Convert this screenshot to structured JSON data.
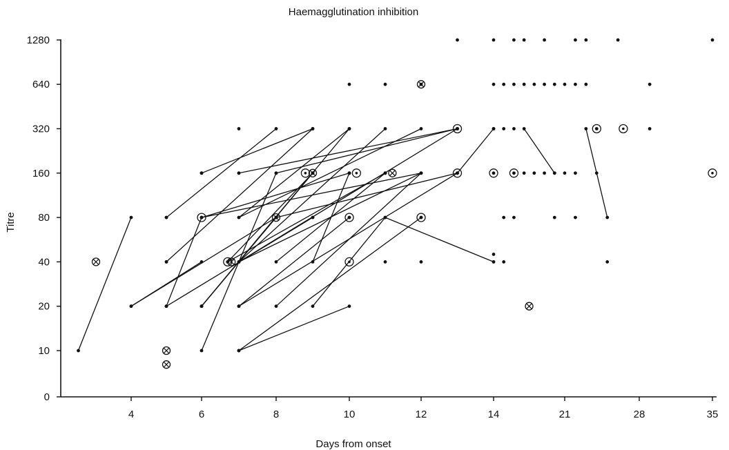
{
  "chart_data": {
    "type": "scatter",
    "title": "Haemagglutination inhibition",
    "xlabel": "Days from onset",
    "ylabel": "Titre",
    "x_ticks": [
      4,
      6,
      8,
      10,
      12,
      14,
      21,
      28,
      35
    ],
    "y_ticks": [
      0,
      10,
      20,
      40,
      80,
      160,
      320,
      640,
      1280
    ],
    "y_scale": "log2",
    "grid": false,
    "legend": "none",
    "paired_sera": [
      [
        [
          2.5,
          10
        ],
        [
          4,
          80
        ]
      ],
      [
        [
          4,
          20
        ],
        [
          6,
          40
        ]
      ],
      [
        [
          4,
          20
        ],
        [
          8,
          80
        ]
      ],
      [
        [
          5,
          80
        ],
        [
          8,
          320
        ]
      ],
      [
        [
          5,
          40
        ],
        [
          9,
          320
        ]
      ],
      [
        [
          5,
          20
        ],
        [
          6,
          80
        ]
      ],
      [
        [
          5,
          20
        ],
        [
          9,
          80
        ]
      ],
      [
        [
          6,
          20
        ],
        [
          10,
          320
        ]
      ],
      [
        [
          6,
          160
        ],
        [
          9,
          320
        ]
      ],
      [
        [
          6,
          80
        ],
        [
          10,
          160
        ]
      ],
      [
        [
          6,
          10
        ],
        [
          8,
          160
        ]
      ],
      [
        [
          6,
          80
        ],
        [
          12,
          160
        ]
      ],
      [
        [
          6,
          20
        ],
        [
          9,
          160
        ]
      ],
      [
        [
          6,
          20
        ],
        [
          8,
          80
        ]
      ],
      [
        [
          6.7,
          40
        ],
        [
          9,
          160
        ]
      ],
      [
        [
          6.7,
          40
        ],
        [
          11,
          160
        ]
      ],
      [
        [
          7,
          160
        ],
        [
          13,
          320
        ]
      ],
      [
        [
          7,
          80
        ],
        [
          10,
          320
        ]
      ],
      [
        [
          7,
          80
        ],
        [
          12,
          320
        ]
      ],
      [
        [
          7,
          40
        ],
        [
          11,
          320
        ]
      ],
      [
        [
          7,
          40
        ],
        [
          12,
          160
        ]
      ],
      [
        [
          7,
          20
        ],
        [
          10,
          80
        ]
      ],
      [
        [
          7,
          20
        ],
        [
          13,
          160
        ]
      ],
      [
        [
          7,
          10
        ],
        [
          12,
          80
        ]
      ],
      [
        [
          7,
          10
        ],
        [
          10,
          20
        ]
      ],
      [
        [
          7,
          40
        ],
        [
          13,
          320
        ]
      ],
      [
        [
          8,
          40
        ],
        [
          11,
          160
        ]
      ],
      [
        [
          8,
          20
        ],
        [
          12,
          160
        ]
      ],
      [
        [
          8,
          80
        ],
        [
          13,
          160
        ]
      ],
      [
        [
          8,
          160
        ],
        [
          13,
          320
        ]
      ],
      [
        [
          9,
          20
        ],
        [
          11,
          80
        ]
      ],
      [
        [
          9,
          40
        ],
        [
          10,
          160
        ]
      ],
      [
        [
          11,
          80
        ],
        [
          14,
          40
        ]
      ],
      [
        [
          14,
          320
        ],
        [
          13,
          160
        ]
      ],
      [
        [
          17,
          320
        ],
        [
          20,
          160
        ]
      ],
      [
        [
          23,
          320
        ],
        [
          25,
          80
        ]
      ]
    ],
    "single_points": [
      [
        5,
        80
      ],
      [
        5,
        40
      ],
      [
        5,
        20
      ],
      [
        6,
        160
      ],
      [
        6,
        160
      ],
      [
        6,
        80
      ],
      [
        6,
        20
      ],
      [
        7,
        320
      ],
      [
        7,
        160
      ],
      [
        7,
        20
      ],
      [
        8,
        80
      ],
      [
        9,
        160
      ],
      [
        9,
        80
      ],
      [
        10,
        640
      ],
      [
        10,
        80
      ],
      [
        10,
        160
      ],
      [
        11,
        640
      ],
      [
        11,
        40
      ],
      [
        11,
        160
      ],
      [
        12,
        640
      ],
      [
        12,
        80
      ],
      [
        12,
        40
      ],
      [
        13,
        1280
      ],
      [
        13,
        320
      ],
      [
        14,
        1280
      ],
      [
        14,
        640
      ],
      [
        14,
        320
      ],
      [
        14,
        160
      ],
      [
        14,
        40
      ],
      [
        15,
        640
      ],
      [
        15,
        320
      ],
      [
        15,
        80
      ],
      [
        15,
        40
      ],
      [
        16,
        1280
      ],
      [
        16,
        640
      ],
      [
        16,
        320
      ],
      [
        16,
        160
      ],
      [
        16,
        80
      ],
      [
        17,
        1280
      ],
      [
        17,
        640
      ],
      [
        17,
        160
      ],
      [
        18,
        640
      ],
      [
        18,
        160
      ],
      [
        19,
        1280
      ],
      [
        19,
        640
      ],
      [
        19,
        160
      ],
      [
        20,
        640
      ],
      [
        20,
        160
      ],
      [
        21,
        640
      ],
      [
        21,
        160
      ],
      [
        22,
        1280
      ],
      [
        22,
        640
      ],
      [
        22,
        160
      ],
      [
        22,
        80
      ],
      [
        23,
        1280
      ],
      [
        23,
        640
      ],
      [
        24,
        320
      ],
      [
        24,
        160
      ],
      [
        26,
        1280
      ],
      [
        25,
        40
      ],
      [
        29,
        640
      ],
      [
        29,
        320
      ],
      [
        35,
        1280
      ],
      [
        14,
        45
      ],
      [
        20,
        80
      ]
    ],
    "ringed_points": [
      [
        6,
        80
      ],
      [
        6.7,
        40
      ],
      [
        8.8,
        160
      ],
      [
        10,
        80
      ],
      [
        10,
        40
      ],
      [
        10.2,
        160
      ],
      [
        12,
        80
      ],
      [
        13,
        320
      ],
      [
        13,
        160
      ],
      [
        14,
        160
      ],
      [
        16,
        160
      ],
      [
        24,
        320
      ],
      [
        26.5,
        320
      ],
      [
        35,
        160
      ]
    ],
    "crossed_points": [
      [
        3,
        40
      ],
      [
        5,
        10
      ],
      [
        5,
        5
      ],
      [
        6.8,
        40
      ],
      [
        8,
        80
      ],
      [
        9,
        160
      ],
      [
        11.2,
        160
      ],
      [
        12,
        640
      ],
      [
        17.5,
        20
      ]
    ]
  }
}
